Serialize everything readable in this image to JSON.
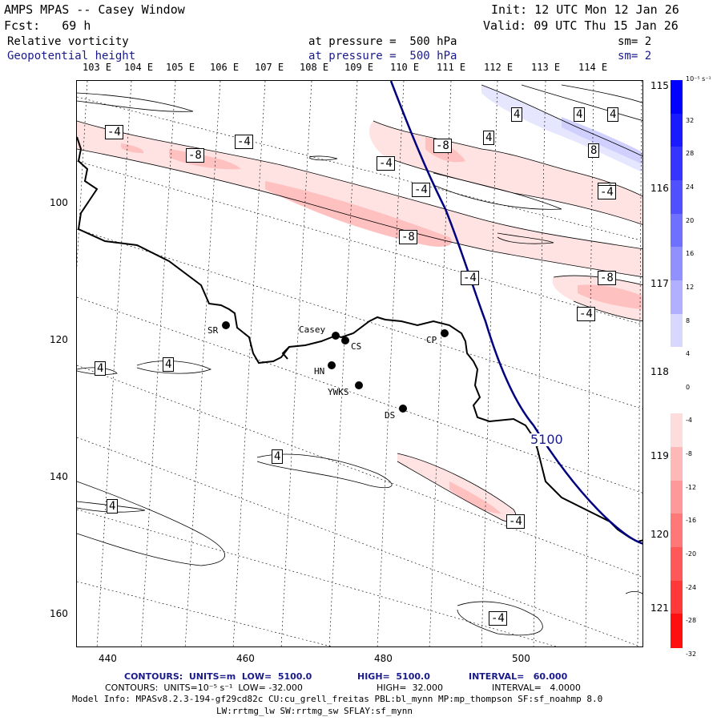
{
  "header": {
    "title": "AMPS MPAS -- Casey Window",
    "init": "Init: 12 UTC Mon 12 Jan 26",
    "fcst": "Fcst:   69 h",
    "valid": "Valid: 09 UTC Thu 15 Jan 26",
    "field1_name": "Relative vorticity",
    "field1_level": "at pressure =  500 hPa",
    "field1_sm": "sm= 2",
    "field2_name": "Geopotential height",
    "field2_level": "at pressure =  500 hPa",
    "field2_sm": "sm= 2"
  },
  "map": {
    "x_ticks": [
      "440",
      "460",
      "480",
      "500"
    ],
    "y_ticks": [
      "100",
      "120",
      "140",
      "160"
    ],
    "top_longitudes": [
      "103 E",
      "104 E",
      "105 E",
      "106 E",
      "107 E",
      "108 E",
      "109 E",
      "110 E",
      "111 E",
      "112 E",
      "113 E",
      "114 E"
    ],
    "right_latitudes": [
      "115 E",
      "116 E",
      "117 E",
      "118 E",
      "119 E",
      "120 E",
      "121 E"
    ],
    "stations": [
      {
        "name": "SR"
      },
      {
        "name": "Casey"
      },
      {
        "name": "CS"
      },
      {
        "name": "HN"
      },
      {
        "name": "YWKS"
      },
      {
        "name": "DS"
      },
      {
        "name": "CP"
      }
    ],
    "height_contour_label": "5100",
    "vort_labels": [
      "-4",
      "-8",
      "-4",
      "-8",
      "-4",
      "-4",
      "-8",
      "-4",
      "-8",
      "-4",
      "-8",
      "4",
      "4",
      "4",
      "8",
      "-4",
      "4",
      "4",
      "4",
      "4",
      "-4",
      "4",
      "-4"
    ]
  },
  "colorbar": {
    "unit": "10⁻⁵ s⁻¹",
    "labels": [
      "32",
      "28",
      "24",
      "20",
      "16",
      "12",
      "8",
      "4",
      "0",
      "-4",
      "-8",
      "-12",
      "-16",
      "-20",
      "-24",
      "-28",
      "-32"
    ],
    "colors": [
      "#0000ff",
      "#1a1aff",
      "#3535ff",
      "#5050ff",
      "#7070ff",
      "#9090ff",
      "#b0b0ff",
      "#d8d8ff",
      "#ffffff",
      "#ffffff",
      "#ffdcdc",
      "#ffb8b8",
      "#ff9898",
      "#ff7878",
      "#ff5858",
      "#ff3838",
      "#ff1010"
    ]
  },
  "footer": {
    "line1_a": "CONTOURS:  UNITS=m  LOW=  5100.0",
    "line1_b": "HIGH=  5100.0",
    "line1_c": "INTERVAL=   60.000",
    "line2_a": "CONTOURS:  UNITS=10⁻⁵ s⁻¹  LOW= -32.000",
    "line2_b": "HIGH=  32.000",
    "line2_c": "INTERVAL=   4.0000",
    "line3": "Model Info: MPASv8.2.3-194-gf29cd82c CU:cu_grell_freitas PBL:bl_mynn MP:mp_thompson SF:sf_noahmp 8.0",
    "line4": "LW:rrtmg_lw SW:rrtmg_sw SFLAY:sf_mynn"
  }
}
